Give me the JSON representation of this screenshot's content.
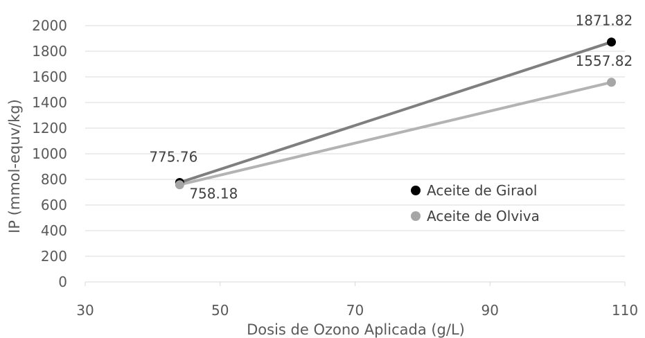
{
  "chart_data": {
    "type": "scatter",
    "title": "",
    "xlabel": "Dosis de Ozono Aplicada (g/L)",
    "ylabel": "IP (mmol-equv/kg)",
    "xlim": [
      30,
      110
    ],
    "ylim": [
      0,
      2000
    ],
    "x_ticks": [
      "30",
      "50",
      "70",
      "90",
      "110"
    ],
    "y_ticks": [
      "0",
      "200",
      "400",
      "600",
      "800",
      "1000",
      "1200",
      "1400",
      "1600",
      "1800",
      "2000"
    ],
    "grid": "horizontal",
    "legend_position": "right",
    "series": [
      {
        "name": "Aceite de Giraol",
        "marker_color": "#000000",
        "line_color": "#7f7f7f",
        "points": [
          {
            "x": 44,
            "y": 775.76,
            "label": "775.76"
          },
          {
            "x": 108,
            "y": 1871.82,
            "label": "1871.82"
          }
        ]
      },
      {
        "name": "Aceite de Olviva",
        "marker_color": "#a6a6a6",
        "line_color": "#b3b3b3",
        "points": [
          {
            "x": 44,
            "y": 758.18,
            "label": "758.18"
          },
          {
            "x": 108,
            "y": 1557.82,
            "label": "1557.82"
          }
        ]
      }
    ]
  }
}
